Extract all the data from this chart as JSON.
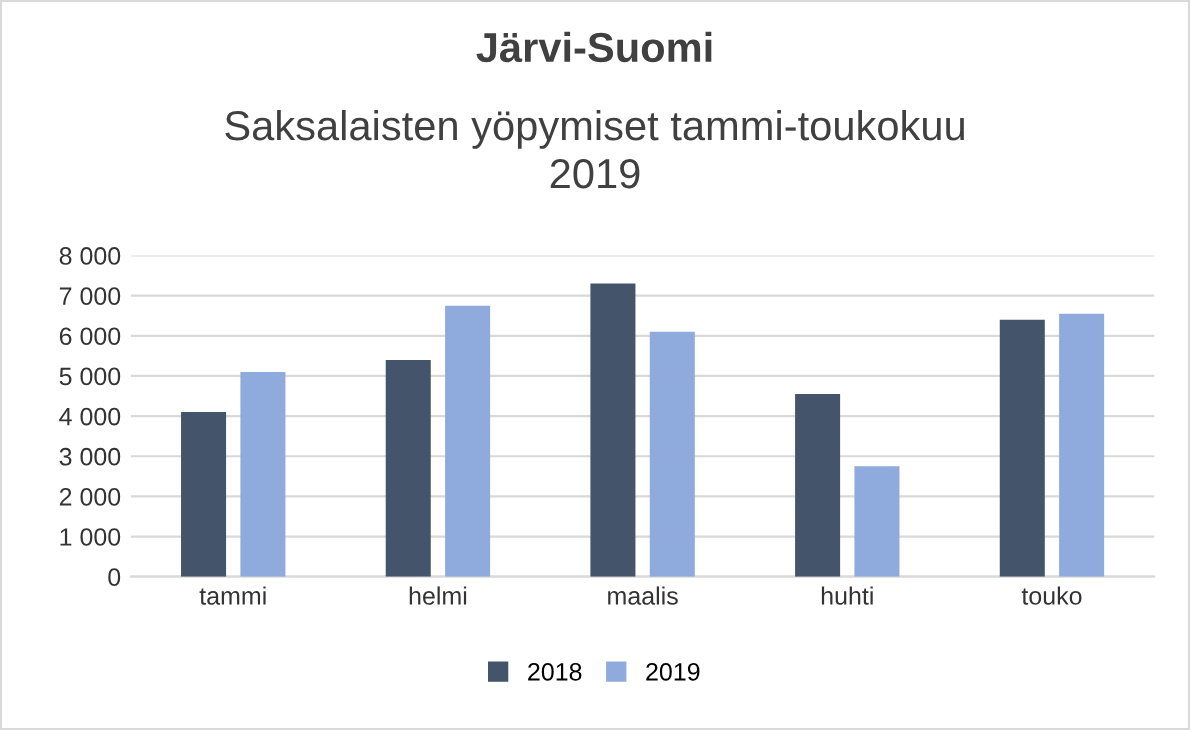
{
  "chart_data": {
    "type": "bar",
    "title": "Järvi-Suomi",
    "subtitle": "Saksalaisten yöpymiset tammi-toukokuu\n2019",
    "categories": [
      "tammi",
      "helmi",
      "maalis",
      "huhti",
      "touko"
    ],
    "series": [
      {
        "name": "2018",
        "color": "#44546a",
        "values": [
          4100,
          5400,
          7300,
          4550,
          6400
        ]
      },
      {
        "name": "2019",
        "color": "#8faadc",
        "values": [
          5100,
          6750,
          6100,
          2750,
          6550
        ]
      }
    ],
    "ylim": [
      0,
      8000
    ],
    "yticks": [
      {
        "value": 0,
        "label": "0"
      },
      {
        "value": 1000,
        "label": "1 000"
      },
      {
        "value": 2000,
        "label": "2 000"
      },
      {
        "value": 3000,
        "label": "3 000"
      },
      {
        "value": 4000,
        "label": "4 000"
      },
      {
        "value": 5000,
        "label": "5 000"
      },
      {
        "value": 6000,
        "label": "6 000"
      },
      {
        "value": 7000,
        "label": "7 000"
      },
      {
        "value": 8000,
        "label": "8 000"
      }
    ],
    "grid": "y",
    "legend": "bottom"
  }
}
